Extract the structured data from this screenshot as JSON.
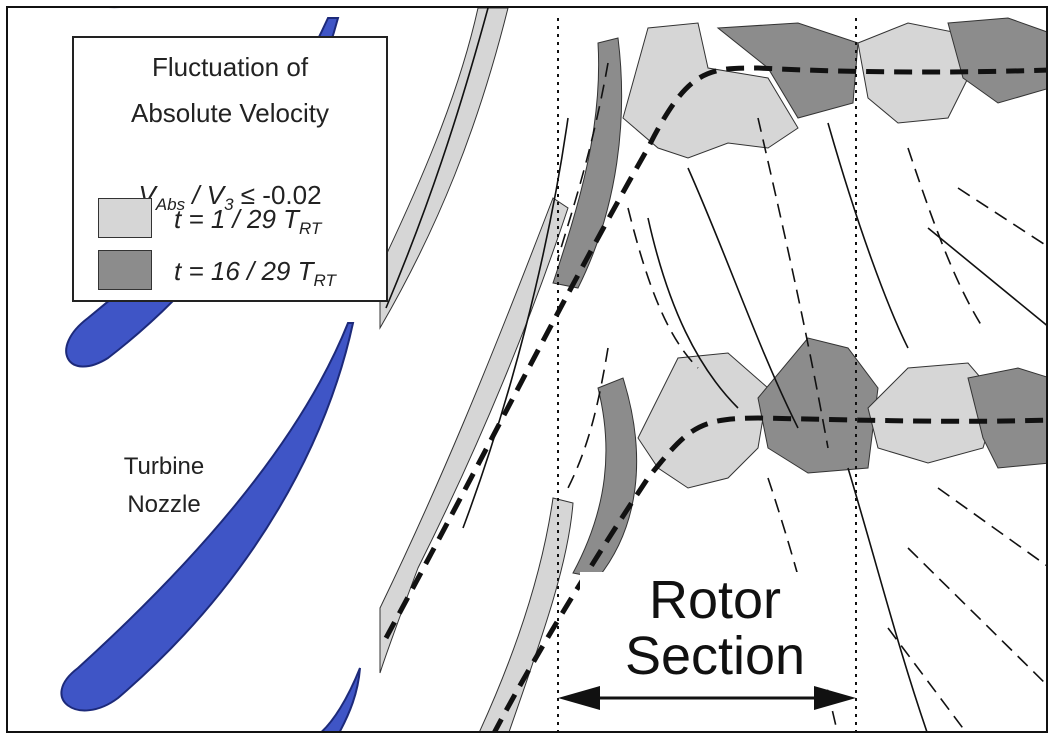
{
  "legend": {
    "title_line1": "Fluctuation of",
    "title_line2": "Absolute Velocity",
    "formula_v": "V",
    "formula_abs_sub": "Abs",
    "formula_mid": " / V",
    "formula_3_sub": "3",
    "formula_tail": " ≤ -0.02",
    "entries": [
      {
        "label": "t = 1 / 29 T",
        "sub": "RT",
        "color": "#d6d6d6"
      },
      {
        "label": "t = 16 / 29 T",
        "sub": "RT",
        "color": "#8c8c8c"
      }
    ]
  },
  "nozzle_label": {
    "line1": "Turbine",
    "line2": "Nozzle"
  },
  "rotor_label": {
    "line1": "Rotor",
    "line2": "Section"
  },
  "colors": {
    "blade": "#3f55c6",
    "blade_edge": "#1d2a7a",
    "light_region": "#d6d6d6",
    "dark_region": "#8c8c8c"
  }
}
